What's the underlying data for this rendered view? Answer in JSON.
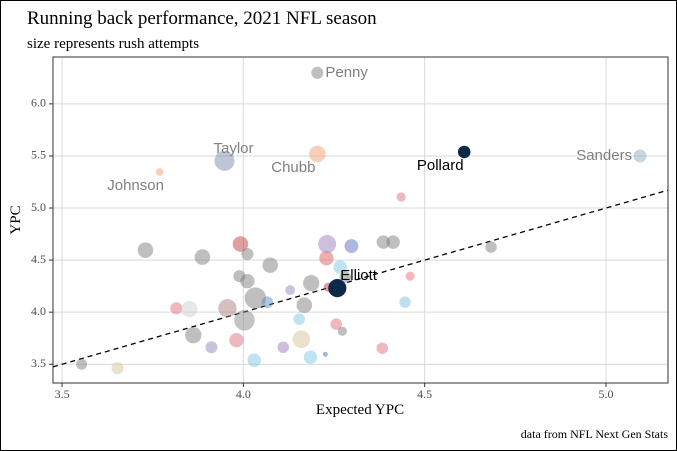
{
  "chart_data": {
    "type": "scatter",
    "title": "Running back performance, 2021 NFL season",
    "subtitle": "size represents rush attempts",
    "x_label": "Expected YPC",
    "y_label": "YPC",
    "caption": "data from NFL Next Gen Stats",
    "xlim": [
      3.475,
      5.171
    ],
    "ylim": [
      3.32,
      6.45
    ],
    "xticks": [
      3.5,
      {
        "value": 4,
        "label": "4.0"
      },
      4.5,
      {
        "value": 5,
        "label": "5.0"
      }
    ],
    "yticks": [
      3.5,
      {
        "value": 4,
        "label": "4.0"
      },
      4.5,
      {
        "value": 5,
        "label": "5.0"
      },
      5.5,
      {
        "value": 6,
        "label": "6.0"
      }
    ],
    "grid": true,
    "diagonal_reference": true,
    "x": [
      3.554,
      3.653,
      3.73,
      3.815,
      3.851,
      3.862,
      3.887,
      3.912,
      3.956,
      3.981,
      3.992,
      3.989,
      4.003,
      4.011,
      4.011,
      4.033,
      4.03,
      4.066,
      4.074,
      4.11,
      4.129,
      4.16,
      4.154,
      4.168,
      4.185,
      4.187,
      4.226,
      4.229,
      4.231,
      4.234,
      4.256,
      4.267,
      4.273,
      4.298,
      4.281,
      4.383,
      4.386,
      4.413,
      4.435,
      4.446,
      4.46,
      4.683,
      4.204,
      3.948,
      4.204,
      3.769,
      5.094,
      4.609,
      4.259
    ],
    "y": [
      3.5,
      3.462,
      4.596,
      4.038,
      4.029,
      3.779,
      4.529,
      3.663,
      4.038,
      3.731,
      4.654,
      4.346,
      3.923,
      4.298,
      4.558,
      4.135,
      3.538,
      4.096,
      4.452,
      3.663,
      4.212,
      3.74,
      3.933,
      4.067,
      3.567,
      4.279,
      3.596,
      4.519,
      4.654,
      4.24,
      3.885,
      4.433,
      3.817,
      4.635,
      4.337,
      3.654,
      4.673,
      4.673,
      5.106,
      4.096,
      4.346,
      4.625,
      6.298,
      5.452,
      5.519,
      5.346,
      5.5,
      5.538,
      4.231
    ],
    "sizes": [
      100,
      120,
      200,
      120,
      220,
      220,
      200,
      120,
      280,
      170,
      200,
      120,
      350,
      170,
      120,
      380,
      150,
      110,
      200,
      110,
      80,
      260,
      110,
      200,
      150,
      220,
      20,
      170,
      270,
      70,
      110,
      150,
      70,
      160,
      110,
      110,
      150,
      150,
      70,
      110,
      70,
      110,
      120,
      330,
      228,
      50,
      140,
      130,
      273
    ],
    "colors": [
      "#7f7f7f80",
      "#d9c39a80",
      "#7f7f7f80",
      "#e0708080",
      "#d0d0d080",
      "#7f7f7f80",
      "#7f7f7f80",
      "#8c8cc080",
      "#b0808080",
      "#e0708080",
      "#c8404080",
      "#7f7f7f80",
      "#8a8a8a80",
      "#7f7f7f80",
      "#7f7f7f80",
      "#7f7f7f80",
      "#7fc8e080",
      "#6090c080",
      "#7f7f7f80",
      "#9a80c080",
      "#8c8cc080",
      "#d9c39a80",
      "#7fc8e080",
      "#7f7f7f80",
      "#7fc8e080",
      "#7f7f7f80",
      "#4070c080",
      "#e0606080",
      "#a080c080",
      "#c0404080",
      "#e0708080",
      "#7fc8e080",
      "#7f7f7f80",
      "#6070c080",
      "#7f7f7f80",
      "#e0708080",
      "#7f7f7f80",
      "#7f7f7f80",
      "#e0708080",
      "#7fc0e080",
      "#f0708080",
      "#7f7f7f80",
      "#7f7f7f80",
      "#7f8cb080",
      "#f4a07a80",
      "#f4a07a80",
      "#8fb0c080",
      "#0b2a4a",
      "#0b2a4a"
    ],
    "labels": [
      null,
      null,
      null,
      null,
      null,
      null,
      null,
      null,
      null,
      null,
      null,
      null,
      null,
      null,
      null,
      null,
      null,
      null,
      null,
      null,
      null,
      null,
      null,
      null,
      null,
      null,
      null,
      null,
      null,
      null,
      null,
      null,
      null,
      null,
      null,
      null,
      null,
      null,
      null,
      null,
      null,
      null,
      "Penny",
      "Taylor",
      "Chubb",
      "Johnson",
      "Sanders",
      "Pollard",
      "Elliott"
    ],
    "label_colors": [
      null,
      null,
      null,
      null,
      null,
      null,
      null,
      null,
      null,
      null,
      null,
      null,
      null,
      null,
      null,
      null,
      null,
      null,
      null,
      null,
      null,
      null,
      null,
      null,
      null,
      null,
      null,
      null,
      null,
      null,
      null,
      null,
      null,
      null,
      null,
      null,
      null,
      null,
      null,
      null,
      null,
      null,
      "#808080",
      "#808080",
      "#808080",
      "#808080",
      "#808080",
      "#000000",
      "#000000"
    ]
  }
}
